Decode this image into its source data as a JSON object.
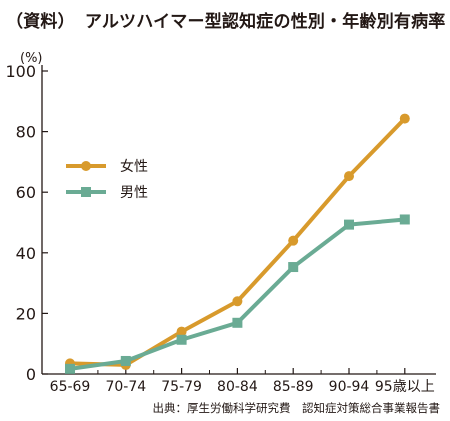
{
  "header": {
    "tag": "（資料）",
    "title": "アルツハイマー型認知症の性別・年齢別有病率"
  },
  "source": "出典：厚生労働科学研究費　認知症対策総合事業報告書",
  "chart_data": {
    "type": "line",
    "title": "アルツハイマー型認知症の性別・年齢別有病率",
    "ylabel": "(%)",
    "xlabel": "",
    "categories": [
      "65-69",
      "70-74",
      "75-79",
      "80-84",
      "85-89",
      "90-94",
      "95歳以上"
    ],
    "ylim": [
      0,
      100
    ],
    "yticks": [
      0,
      20,
      40,
      60,
      80,
      100
    ],
    "grid": false,
    "legend_position": "upper-left",
    "series": [
      {
        "name": "女性",
        "color": "#d89a2c",
        "marker": "circle",
        "values": [
          3.5,
          3,
          14,
          24,
          44,
          65.3,
          84.3
        ]
      },
      {
        "name": "男性",
        "color": "#6aab94",
        "marker": "square",
        "values": [
          1.7,
          4.3,
          11.3,
          16.9,
          35.3,
          49.3,
          51
        ]
      }
    ]
  }
}
